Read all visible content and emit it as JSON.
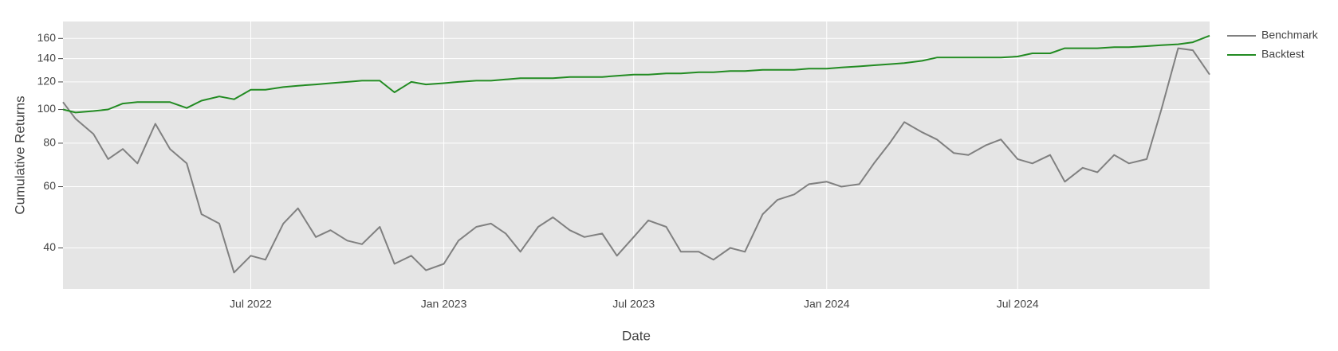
{
  "chart_data": {
    "type": "line",
    "x_label": "Date",
    "y_label": "Cumulative Returns",
    "x": [
      "2022-01-03",
      "2022-01-15",
      "2022-02-01",
      "2022-02-15",
      "2022-03-01",
      "2022-03-15",
      "2022-04-01",
      "2022-04-15",
      "2022-05-01",
      "2022-05-15",
      "2022-06-01",
      "2022-06-15",
      "2022-07-01",
      "2022-07-15",
      "2022-08-01",
      "2022-08-15",
      "2022-09-01",
      "2022-09-15",
      "2022-10-01",
      "2022-10-15",
      "2022-11-01",
      "2022-11-15",
      "2022-12-01",
      "2022-12-15",
      "2023-01-01",
      "2023-01-15",
      "2023-02-01",
      "2023-02-15",
      "2023-03-01",
      "2023-03-15",
      "2023-04-01",
      "2023-04-15",
      "2023-05-01",
      "2023-05-15",
      "2023-06-01",
      "2023-06-15",
      "2023-07-01",
      "2023-07-15",
      "2023-08-01",
      "2023-08-15",
      "2023-09-01",
      "2023-09-15",
      "2023-10-01",
      "2023-10-15",
      "2023-11-01",
      "2023-11-15",
      "2023-12-01",
      "2023-12-15",
      "2024-01-01",
      "2024-01-15",
      "2024-02-01",
      "2024-02-15",
      "2024-03-01",
      "2024-03-15",
      "2024-04-01",
      "2024-04-15",
      "2024-05-01",
      "2024-05-15",
      "2024-06-01",
      "2024-06-15",
      "2024-07-01",
      "2024-07-15",
      "2024-08-01",
      "2024-08-15",
      "2024-09-01",
      "2024-09-15",
      "2024-10-01",
      "2024-10-15",
      "2024-11-01",
      "2024-11-15",
      "2024-12-01",
      "2024-12-15",
      "2024-12-31"
    ],
    "series": [
      {
        "name": "Benchmark",
        "color": "#808080",
        "values": [
          105,
          94,
          85,
          72,
          77,
          70,
          91,
          77,
          70,
          50,
          47,
          34,
          38,
          37,
          47,
          52,
          43,
          45,
          42,
          41,
          46,
          36,
          38,
          34.5,
          36,
          42,
          46,
          47,
          44,
          39,
          46,
          49,
          45,
          43,
          44,
          38,
          43,
          48,
          46,
          39,
          39,
          37,
          40,
          39,
          50,
          55,
          57,
          61,
          62,
          60,
          61,
          70,
          80,
          92,
          86,
          82,
          75,
          74,
          79,
          82,
          72,
          70,
          74,
          62,
          68,
          66,
          74,
          70,
          72,
          100,
          150,
          148,
          126
        ]
      },
      {
        "name": "Backtest",
        "color": "#228b22",
        "values": [
          100,
          98,
          99,
          100,
          104,
          105,
          105,
          105,
          101,
          106,
          109,
          107,
          114,
          114,
          116,
          117,
          118,
          119,
          120,
          121,
          121,
          112,
          120,
          118,
          119,
          120,
          121,
          121,
          122,
          123,
          123,
          123,
          124,
          124,
          124,
          125,
          126,
          126,
          127,
          127,
          128,
          128,
          129,
          129,
          130,
          130,
          130,
          131,
          131,
          132,
          133,
          134,
          135,
          136,
          138,
          141,
          141,
          141,
          141,
          141,
          142,
          145,
          145,
          150,
          150,
          150,
          151,
          151,
          152,
          153,
          154,
          156,
          163
        ]
      }
    ],
    "xlim": [
      "2022-01-03",
      "2024-12-31"
    ],
    "xticks": [
      {
        "value": "2022-07-01",
        "label": "Jul 2022"
      },
      {
        "value": "2023-01-01",
        "label": "Jan 2023"
      },
      {
        "value": "2023-07-01",
        "label": "Jul 2023"
      },
      {
        "value": "2024-01-01",
        "label": "Jan 2024"
      },
      {
        "value": "2024-07-01",
        "label": "Jul 2024"
      }
    ],
    "ylim": [
      30.5,
      179
    ],
    "yticks": [
      40,
      60,
      80,
      100,
      120,
      140,
      160
    ],
    "log_y": true,
    "grid": true,
    "legend_position": "right"
  }
}
